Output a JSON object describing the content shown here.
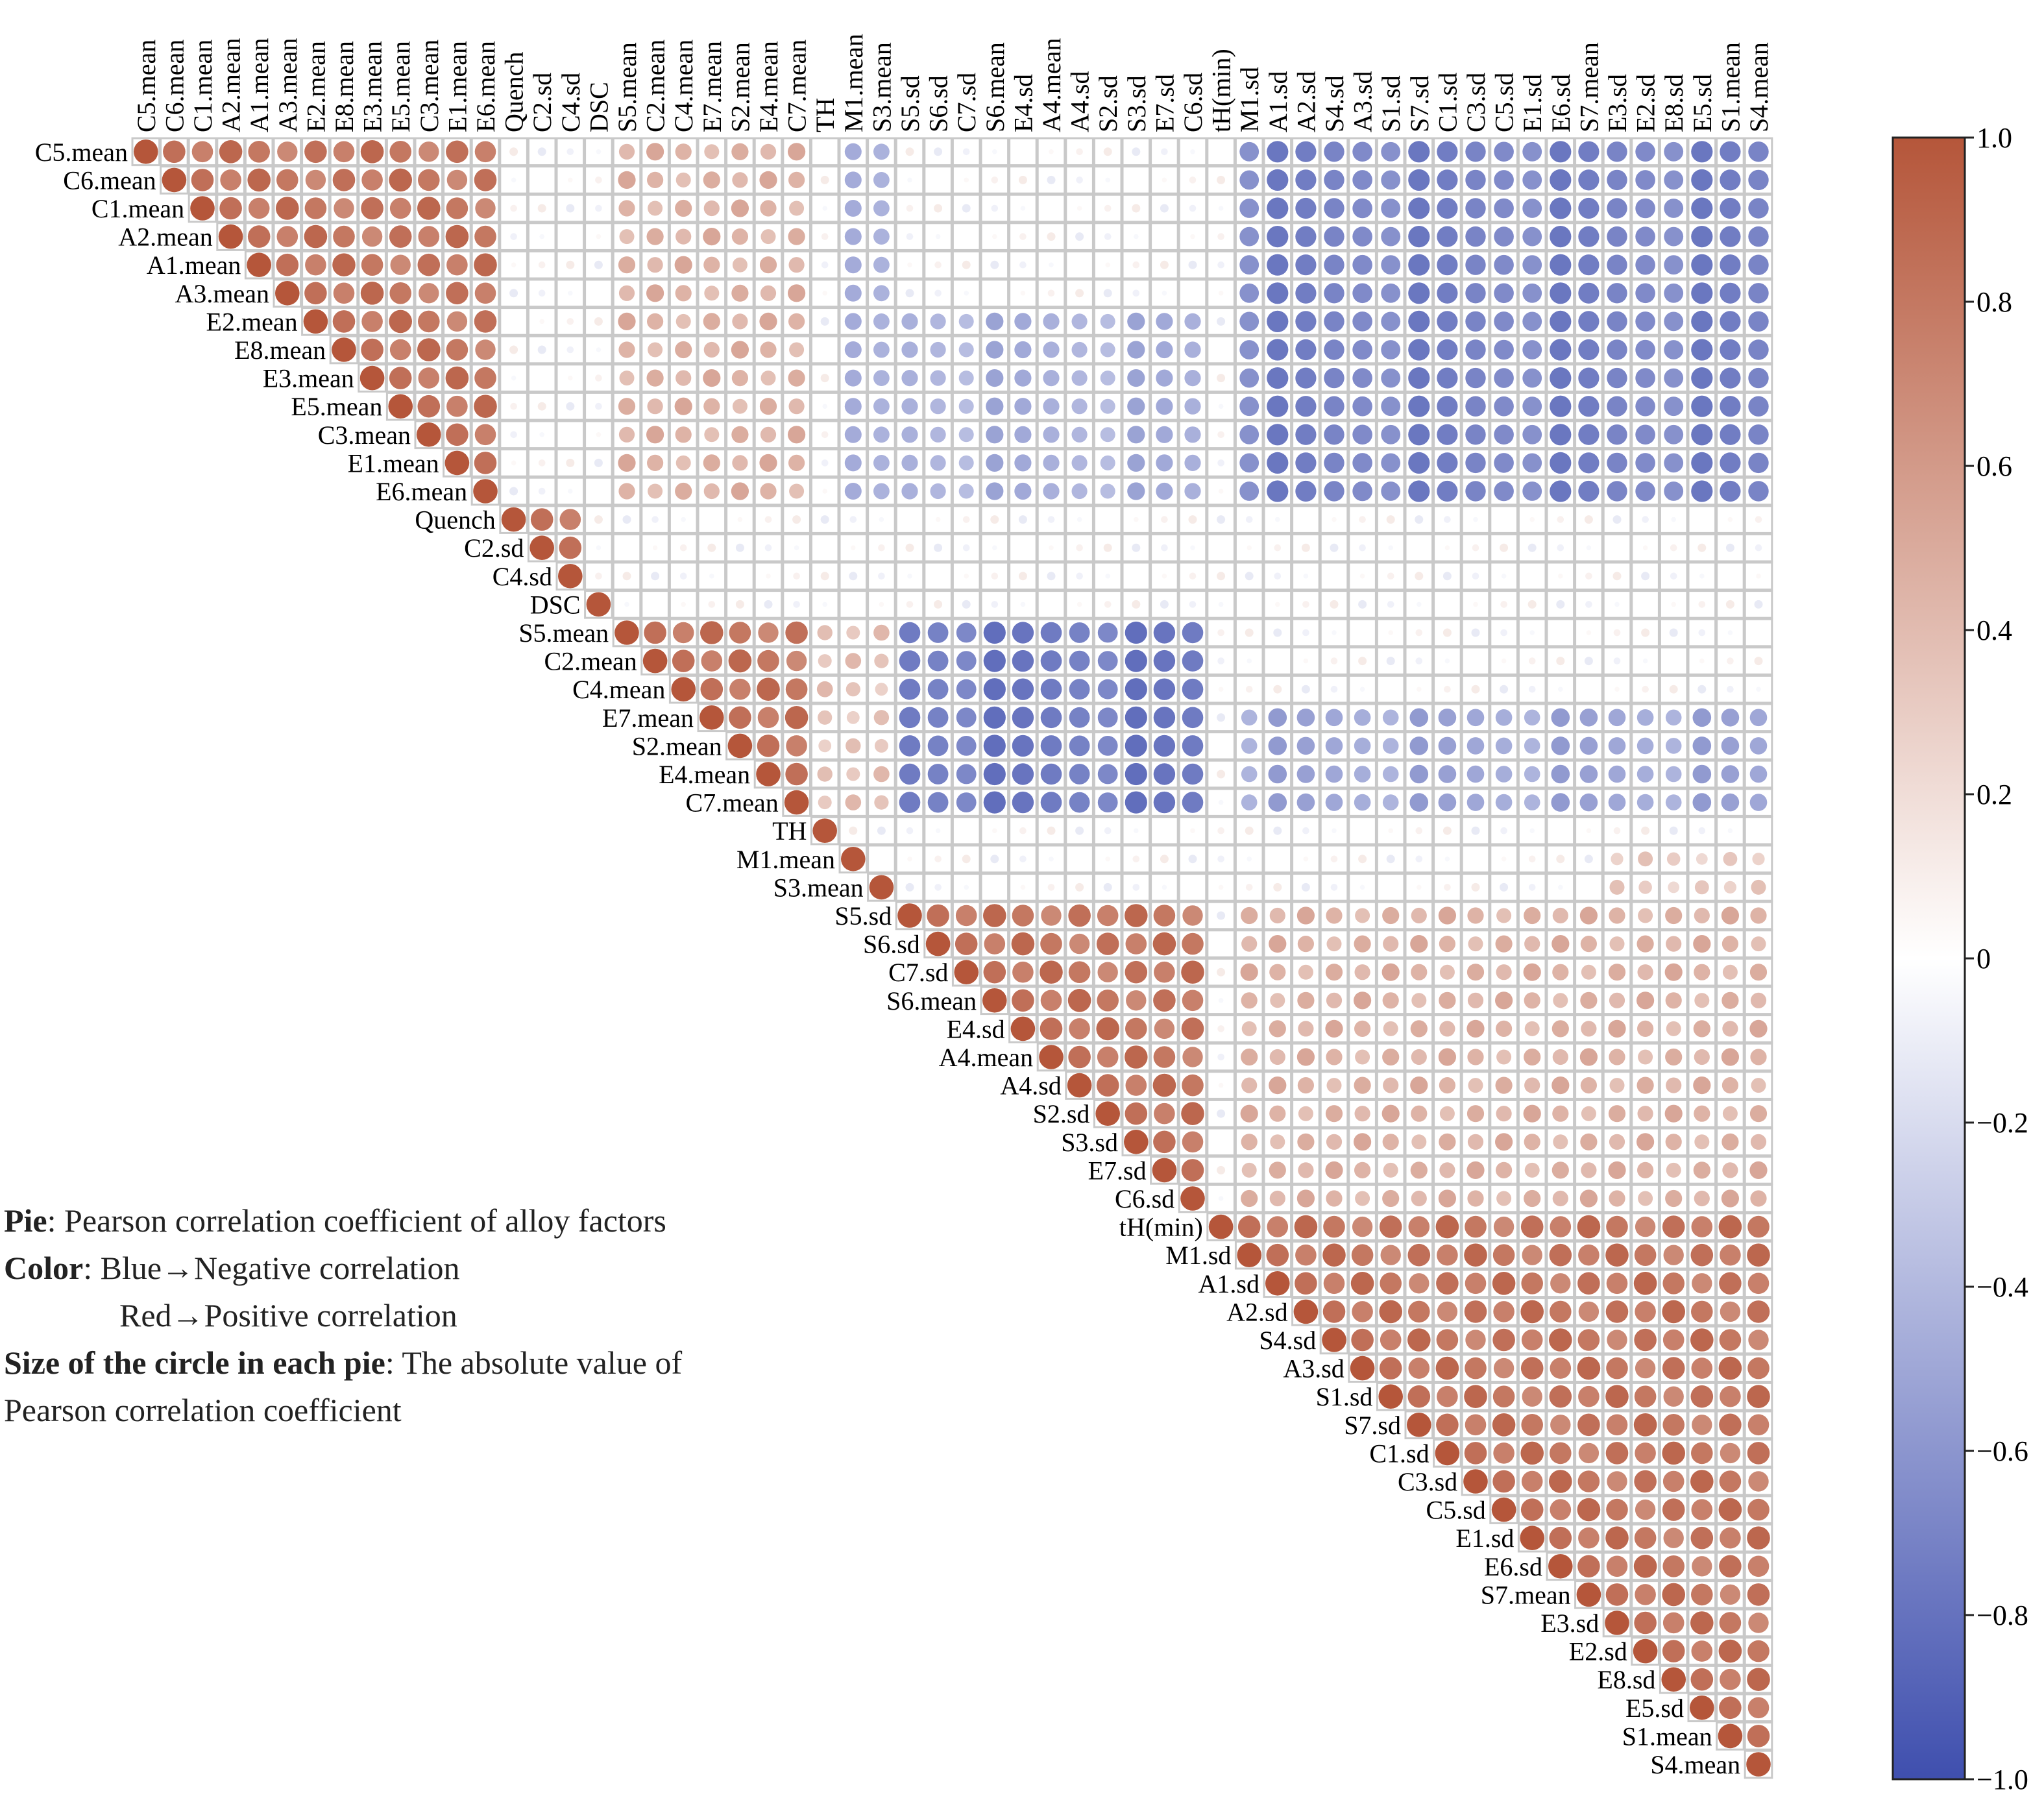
{
  "chart_data": {
    "type": "heatmap",
    "subtype": "correlation-circle",
    "triangle": "upper",
    "variables": [
      "C5.mean",
      "C6.mean",
      "C1.mean",
      "A2.mean",
      "A1.mean",
      "A3.mean",
      "E2.mean",
      "E8.mean",
      "E3.mean",
      "E5.mean",
      "C3.mean",
      "E1.mean",
      "E6.mean",
      "Quench",
      "C2.sd",
      "C4.sd",
      "DSC",
      "S5.mean",
      "C2.mean",
      "C4.mean",
      "E7.mean",
      "S2.mean",
      "E4.mean",
      "C7.mean",
      "TH",
      "M1.mean",
      "S3.mean",
      "S5.sd",
      "S6.sd",
      "C7.sd",
      "S6.mean",
      "E4.sd",
      "A4.mean",
      "A4.sd",
      "S2.sd",
      "S3.sd",
      "E7.sd",
      "C6.sd",
      "tH(min)",
      "M1.sd",
      "A1.sd",
      "A2.sd",
      "S4.sd",
      "A3.sd",
      "S1.sd",
      "S7.sd",
      "C1.sd",
      "C3.sd",
      "C5.sd",
      "E1.sd",
      "E6.sd",
      "S7.mean",
      "E3.sd",
      "E2.sd",
      "E8.sd",
      "E5.sd",
      "S1.mean",
      "S4.mean"
    ],
    "blocks": {
      "positive": [
        [
          0,
          12
        ],
        [
          13,
          15
        ],
        [
          17,
          23
        ],
        [
          27,
          37
        ],
        [
          38,
          57
        ]
      ],
      "negative": [
        {
          "rows": [
            0,
            12
          ],
          "cols": [
            39,
            57
          ],
          "value": -0.7
        },
        {
          "rows": [
            6,
            12
          ],
          "cols": [
            27,
            37
          ],
          "value": -0.45
        },
        {
          "rows": [
            17,
            23
          ],
          "cols": [
            27,
            37
          ],
          "value": -0.75
        },
        {
          "rows": [
            20,
            23
          ],
          "cols": [
            39,
            57
          ],
          "value": -0.5
        },
        {
          "rows": [
            0,
            12
          ],
          "cols": [
            25,
            26
          ],
          "value": -0.4
        }
      ],
      "cross_positive": [
        {
          "rows": [
            27,
            37
          ],
          "cols": [
            39,
            57
          ],
          "value": 0.45
        },
        {
          "rows": [
            0,
            12
          ],
          "cols": [
            17,
            23
          ],
          "value": 0.45
        },
        {
          "rows": [
            17,
            23
          ],
          "cols": [
            24,
            26
          ],
          "value": 0.35
        },
        {
          "rows": [
            25,
            26
          ],
          "cols": [
            52,
            57
          ],
          "value": 0.3
        }
      ]
    },
    "colorbar": {
      "ticks": [
        1.0,
        0.8,
        0.6,
        0.4,
        0.2,
        0,
        -0.2,
        -0.4,
        -0.6,
        -0.8,
        -1.0
      ],
      "tick_labels": [
        "1.0",
        "0.8",
        "0.6",
        "0.4",
        "0.2",
        "0",
        "−0.2",
        "−0.4",
        "−0.6",
        "−0.8",
        "−1.0"
      ],
      "range": [
        -1,
        1
      ],
      "colors": {
        "positive": "#b5563a",
        "neutral": "#ffffff",
        "negative": "#3f4fae"
      }
    },
    "legend_note": {
      "pie_label": "Pie",
      "pie_text": ": Pearson correlation coefficient of alloy factors",
      "color_label": "Color",
      "color_neg": ": Blue→Negative correlation",
      "color_pos": "Red→Positive correlation",
      "size_label": "Size of the circle in each pie",
      "size_text": ": The absolute value of Pearson correlation coefficient"
    }
  }
}
